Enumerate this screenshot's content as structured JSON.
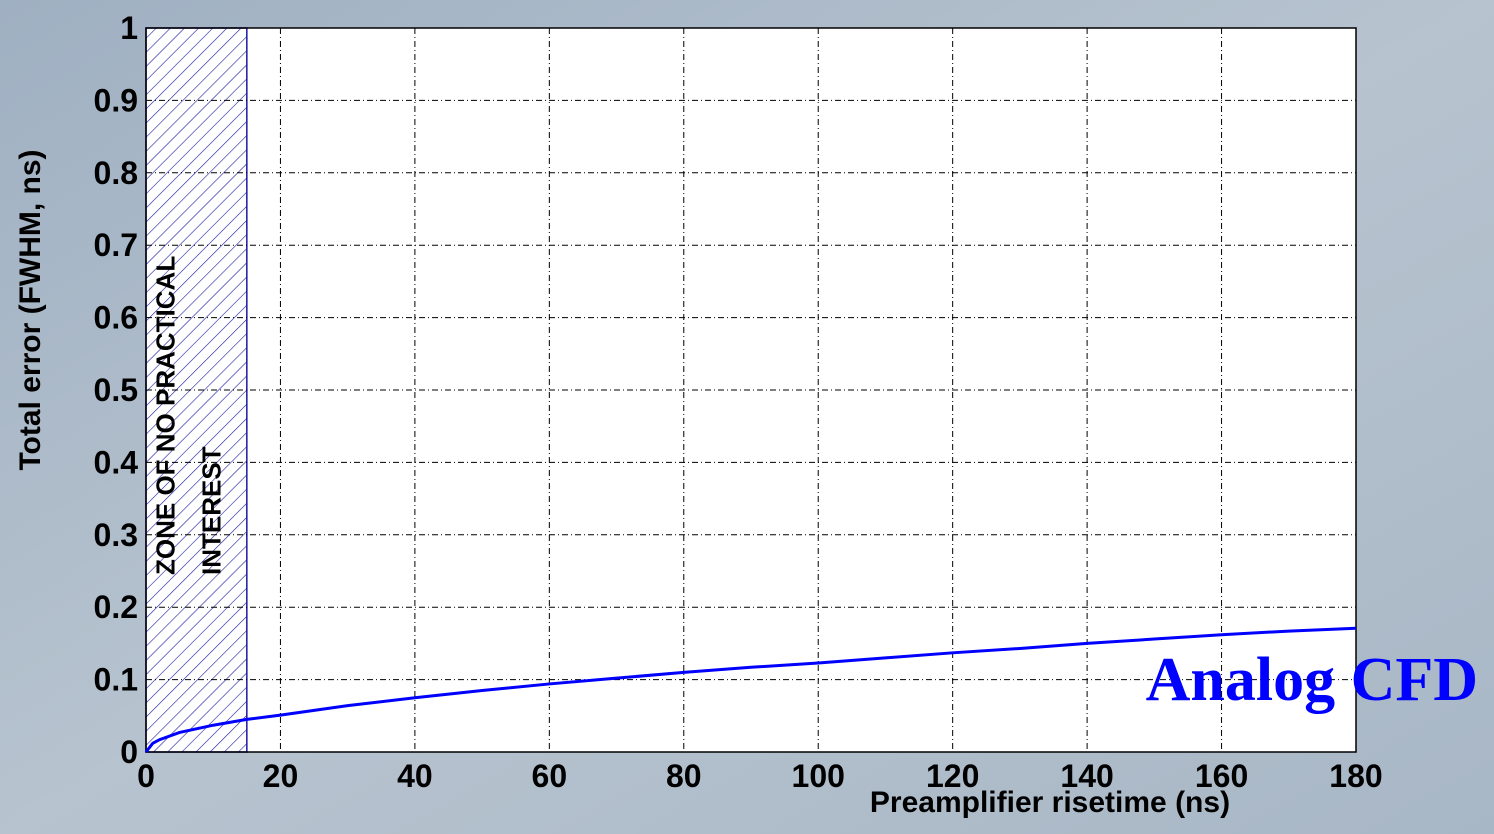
{
  "chart_data": {
    "type": "line",
    "x_label": "Preamplifier risetime (ns)",
    "y_label": "Total error (FWHM, ns)",
    "x": [
      0,
      1,
      2,
      5,
      10,
      15,
      20,
      30,
      40,
      50,
      60,
      70,
      80,
      90,
      100,
      110,
      120,
      130,
      140,
      150,
      160,
      170,
      180
    ],
    "series": [
      {
        "name": "Analog CFD",
        "color": "#0000ff",
        "values": [
          0,
          0.012,
          0.017,
          0.027,
          0.037,
          0.045,
          0.051,
          0.064,
          0.075,
          0.085,
          0.094,
          0.102,
          0.11,
          0.117,
          0.123,
          0.13,
          0.137,
          0.143,
          0.15,
          0.156,
          0.162,
          0.167,
          0.171
        ]
      }
    ],
    "zone": {
      "x": [
        0,
        15
      ],
      "color": "#1a1aa0",
      "label_lines": [
        "ZONE OF NO PRACTICAL",
        "INTEREST"
      ]
    },
    "xlim": [
      0,
      180
    ],
    "xticks": [
      0,
      20,
      40,
      60,
      80,
      100,
      120,
      140,
      160,
      180
    ],
    "ylim": [
      0,
      1
    ],
    "yticks": [
      0,
      0.1,
      0.2,
      0.3,
      0.4,
      0.5,
      0.6,
      0.7,
      0.8,
      0.9,
      1
    ],
    "grid": true
  }
}
